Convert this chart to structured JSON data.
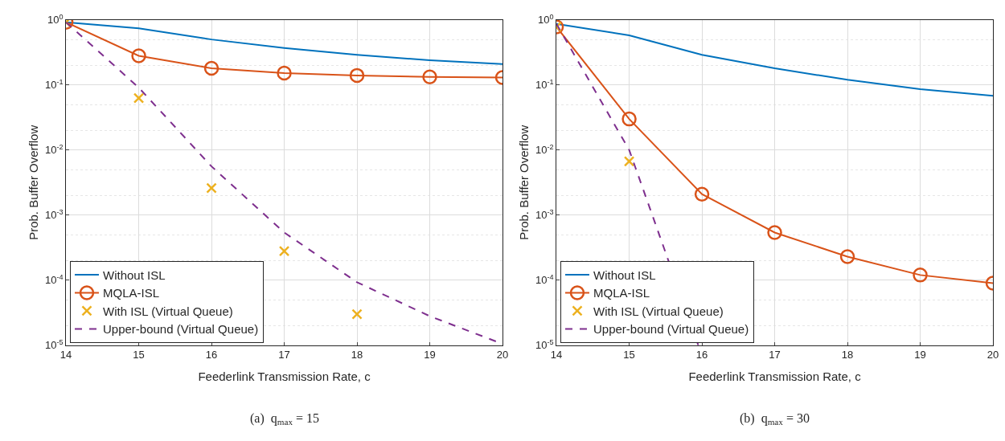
{
  "chart_data": [
    {
      "type": "line",
      "xlabel": "Feederlink Transmission Rate, c",
      "ylabel": "Prob. Buffer Overflow",
      "annotations": [
        "(a)  q$_{max}$ = 15"
      ],
      "x": [
        14,
        15,
        16,
        17,
        18,
        19,
        20
      ],
      "xlim": [
        14,
        20
      ],
      "xticks": [
        14,
        15,
        16,
        17,
        18,
        19,
        20
      ],
      "log": "y",
      "ylim": [
        1e-05,
        1
      ],
      "yticks": [
        {
          "value": 1e-05,
          "label": "10$^{-5}$"
        },
        {
          "value": 0.0001,
          "label": "10$^{-4}$"
        },
        {
          "value": 0.001,
          "label": "10$^{-3}$"
        },
        {
          "value": 0.01,
          "label": "10$^{-2}$"
        },
        {
          "value": 0.1,
          "label": "10$^{-1}$"
        },
        {
          "value": 1,
          "label": "10$^{0}$"
        }
      ],
      "grid": true,
      "legend": "bottom left",
      "series": [
        {
          "name": "Without ISL",
          "color": "#0072bd",
          "marker": "none",
          "line_style": "solid",
          "values": [
            0.92,
            0.74,
            0.5,
            0.37,
            0.29,
            0.24,
            0.21
          ]
        },
        {
          "name": "MQLA-ISL",
          "color": "#d95319",
          "marker": "circle",
          "line_style": "solid",
          "values": [
            0.92,
            0.28,
            0.18,
            0.152,
            0.14,
            0.133,
            0.13
          ]
        },
        {
          "name": "With ISL (Virtual Queue)",
          "color": "#edb120",
          "type": "scatter",
          "marker": "cross",
          "x": [
            14,
            15,
            16,
            17,
            18
          ],
          "values": [
            0.92,
            0.063,
            0.0026,
            0.00028,
            3e-05
          ]
        },
        {
          "name": "Upper-bound (Virtual Queue)",
          "color": "#7e2f8e",
          "marker": "none",
          "line_style": "dashed",
          "values": [
            0.92,
            0.091,
            0.0056,
            0.00054,
            9.3e-05,
            2.8e-05,
            1.05e-05
          ]
        }
      ]
    },
    {
      "type": "line",
      "xlabel": "Feederlink Transmission Rate, c",
      "ylabel": "Prob. Buffer Overflow",
      "annotations": [
        "(b)  q$_{max}$ = 30"
      ],
      "x": [
        14,
        15,
        16,
        17,
        18,
        19,
        20
      ],
      "xlim": [
        14,
        20
      ],
      "xticks": [
        14,
        15,
        16,
        17,
        18,
        19,
        20
      ],
      "log": "y",
      "ylim": [
        1e-05,
        1
      ],
      "yticks": [
        {
          "value": 1e-05,
          "label": "10$^{-5}$"
        },
        {
          "value": 0.0001,
          "label": "10$^{-4}$"
        },
        {
          "value": 0.001,
          "label": "10$^{-3}$"
        },
        {
          "value": 0.01,
          "label": "10$^{-2}$"
        },
        {
          "value": 0.1,
          "label": "10$^{-1}$"
        },
        {
          "value": 1,
          "label": "10$^{0}$"
        }
      ],
      "grid": true,
      "legend": "bottom left",
      "series": [
        {
          "name": "Without ISL",
          "color": "#0072bd",
          "marker": "none",
          "line_style": "solid",
          "values": [
            0.87,
            0.58,
            0.29,
            0.18,
            0.12,
            0.086,
            0.068
          ]
        },
        {
          "name": "MQLA-ISL",
          "color": "#d95319",
          "marker": "circle",
          "line_style": "solid",
          "values": [
            0.78,
            0.03,
            0.0021,
            0.00054,
            0.00023,
            0.00012,
            9e-05
          ]
        },
        {
          "name": "With ISL (Virtual Queue)",
          "color": "#edb120",
          "type": "scatter",
          "marker": "cross",
          "x": [
            14,
            15
          ],
          "values": [
            0.78,
            0.0067
          ]
        },
        {
          "name": "Upper-bound (Virtual Queue)",
          "color": "#7e2f8e",
          "marker": "none",
          "line_style": "dashed",
          "x": [
            14,
            15,
            15.4,
            15.95
          ],
          "values": [
            0.87,
            0.01,
            0.00055,
            1e-05
          ]
        }
      ]
    }
  ]
}
